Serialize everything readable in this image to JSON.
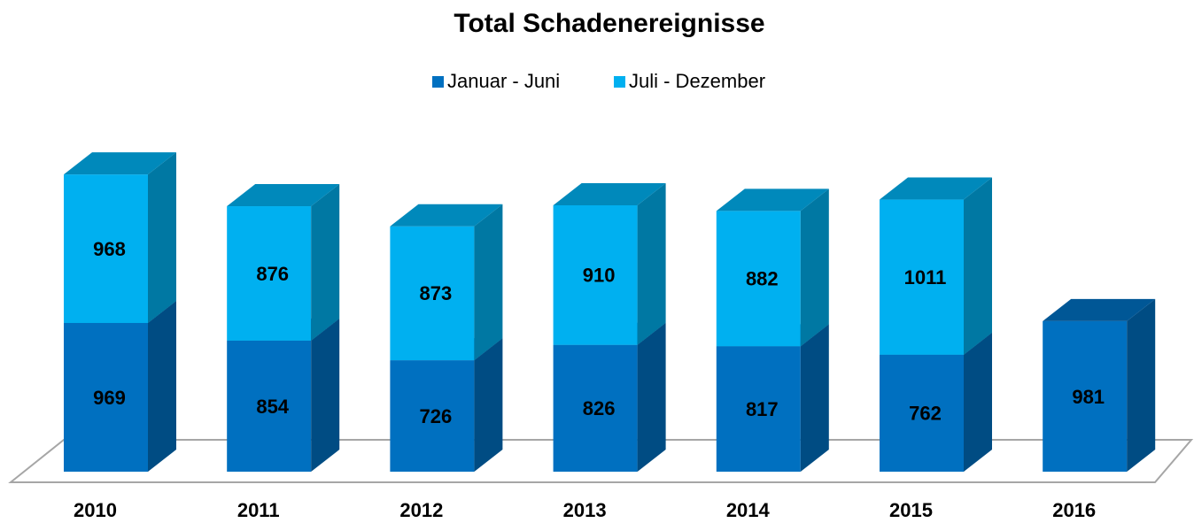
{
  "chart_data": {
    "type": "bar3d_stacked",
    "title": "Total Schadenereignisse",
    "categories": [
      "2010",
      "2011",
      "2012",
      "2013",
      "2014",
      "2015",
      "2016"
    ],
    "series": [
      {
        "name": "Januar - Juni",
        "color": "#0070c0",
        "values": [
          969,
          854,
          726,
          826,
          817,
          762,
          981
        ]
      },
      {
        "name": "Juli - Dezember",
        "color": "#00b0f0",
        "values": [
          968,
          876,
          873,
          910,
          882,
          1011,
          null
        ]
      }
    ],
    "legend": "top"
  }
}
